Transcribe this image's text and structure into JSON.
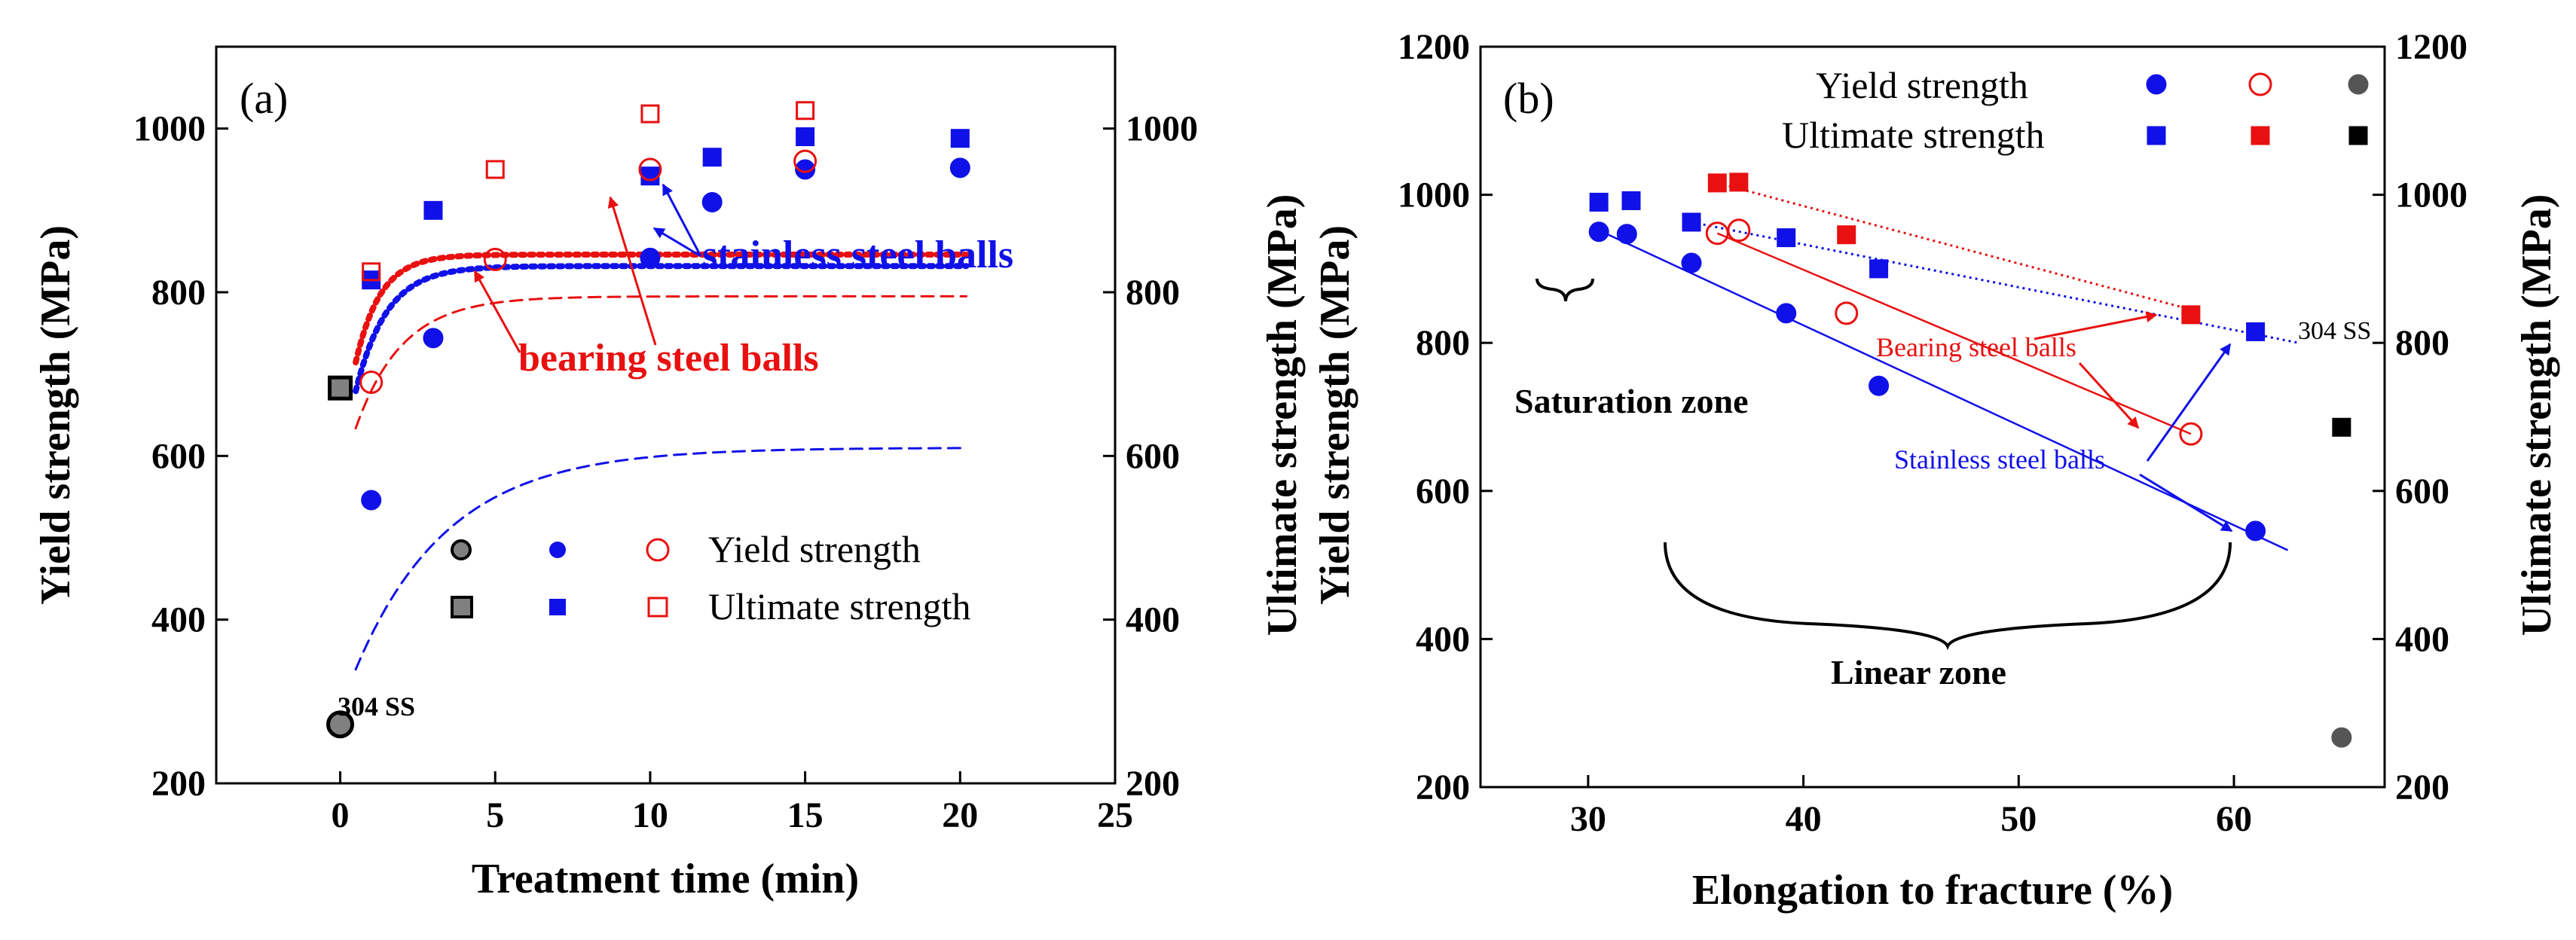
{
  "chart_data": [
    {
      "type": "scatter",
      "panel_label": "(a)",
      "xlabel": "Treatment time (min)",
      "ylabel": "Yield strength (MPa)",
      "y2label": "Ultimate strength (MPa)",
      "xlim": [
        -4,
        25
      ],
      "ylim": [
        200,
        1100
      ],
      "xticks": [
        0,
        5,
        10,
        15,
        20,
        25
      ],
      "yticks": [
        200,
        400,
        600,
        800,
        1000
      ],
      "series": [
        {
          "name": "304 SS yield",
          "marker": "circle",
          "fill": "#808080",
          "edge": "#000000",
          "points": [
            [
              0,
              272
            ]
          ]
        },
        {
          "name": "304 SS ultimate",
          "marker": "square",
          "fill": "#808080",
          "edge": "#000000",
          "points": [
            [
              0,
              683
            ]
          ]
        },
        {
          "name": "Stainless steel balls yield",
          "marker": "circle",
          "fill": "#1010e8",
          "edge": "#1010e8",
          "points": [
            [
              1,
              546
            ],
            [
              3,
              744
            ],
            [
              10,
              842
            ],
            [
              12,
              910
            ],
            [
              15,
              950
            ],
            [
              20,
              952
            ]
          ]
        },
        {
          "name": "Stainless steel balls ultimate",
          "marker": "square",
          "fill": "#1010e8",
          "edge": "#1010e8",
          "points": [
            [
              1,
              815
            ],
            [
              3,
              900
            ],
            [
              10,
              942
            ],
            [
              12,
              965
            ],
            [
              15,
              990
            ],
            [
              20,
              988
            ]
          ]
        },
        {
          "name": "Bearing steel balls yield",
          "marker": "circle",
          "fill": "none",
          "edge": "#e81010",
          "points": [
            [
              1,
              690
            ],
            [
              5,
              840
            ],
            [
              10,
              950
            ],
            [
              15,
              960
            ]
          ]
        },
        {
          "name": "Bearing steel balls ultimate",
          "marker": "square",
          "fill": "none",
          "edge": "#e81010",
          "points": [
            [
              1,
              825
            ],
            [
              5,
              950
            ],
            [
              10,
              1018
            ],
            [
              15,
              1022
            ]
          ]
        }
      ],
      "fits": [
        {
          "name": "stainless yield fit",
          "color": "#1010e8",
          "style": "dashed",
          "A": 290,
          "B": 320,
          "tau": 3
        },
        {
          "name": "stainless ultimate fit",
          "color": "#1010e8",
          "style": "dotted",
          "A": 580,
          "B": 252,
          "tau": 1
        },
        {
          "name": "bearing yield fit",
          "color": "#e81010",
          "style": "dashed",
          "A": 570,
          "B": 225,
          "tau": 1.5
        },
        {
          "name": "bearing ultimate fit",
          "color": "#e81010",
          "style": "dotted",
          "A": 600,
          "B": 246,
          "tau": 0.8
        }
      ],
      "legend_labels": [
        "Yield strength",
        "Ultimate strength"
      ],
      "annotations": {
        "ss304": "304 SS",
        "stainless": "stainless steel balls",
        "bearing": "bearing steel balls"
      }
    },
    {
      "type": "scatter",
      "panel_label": "(b)",
      "xlabel": "Elongation to fracture (%)",
      "ylabel": "Yield strength (MPa)",
      "y2label": "Ultimate strength (MPa)",
      "xlim": [
        25,
        67
      ],
      "ylim": [
        200,
        1200
      ],
      "xticks": [
        30,
        40,
        50,
        60
      ],
      "yticks": [
        200,
        400,
        600,
        800,
        1000,
        1200
      ],
      "series": [
        {
          "name": "Stainless yield",
          "marker": "circle",
          "fill": "#1010e8",
          "edge": "#1010e8",
          "points": [
            [
              30.5,
              950
            ],
            [
              31.8,
              947
            ],
            [
              34.8,
              908
            ],
            [
              39.2,
              840
            ],
            [
              43.5,
              742
            ],
            [
              61,
              546
            ]
          ]
        },
        {
          "name": "Stainless ultimate",
          "marker": "square",
          "fill": "#1010e8",
          "edge": "#1010e8",
          "points": [
            [
              30.5,
              990
            ],
            [
              32,
              992
            ],
            [
              34.8,
              963
            ],
            [
              39.2,
              942
            ],
            [
              43.5,
              900
            ],
            [
              61,
              815
            ]
          ]
        },
        {
          "name": "Bearing yield",
          "marker": "circle",
          "fill": "none",
          "edge": "#e81010",
          "points": [
            [
              36,
              948
            ],
            [
              37,
              952
            ],
            [
              42,
              840
            ],
            [
              58,
              677
            ]
          ]
        },
        {
          "name": "Bearing ultimate",
          "marker": "square",
          "fill": "#e81010",
          "edge": "#e81010",
          "points": [
            [
              36,
              1016
            ],
            [
              37,
              1017
            ],
            [
              42,
              946
            ],
            [
              58,
              838
            ]
          ]
        },
        {
          "name": "304 SS yield",
          "marker": "circle",
          "fill": "#555555",
          "edge": "#555555",
          "points": [
            [
              65,
              267
            ]
          ]
        },
        {
          "name": "304 SS ultimate",
          "marker": "square",
          "fill": "#000000",
          "edge": "#000000",
          "points": [
            [
              65,
              686
            ]
          ]
        }
      ],
      "trend_lines": [
        {
          "color": "#1010e8",
          "style": "solid",
          "from": [
            30.5,
            952
          ],
          "to": [
            62.5,
            520
          ]
        },
        {
          "color": "#1010e8",
          "style": "dotted",
          "from": [
            34.8,
            963
          ],
          "to": [
            63,
            800
          ]
        },
        {
          "color": "#e81010",
          "style": "dotted",
          "from": [
            36,
            1016
          ],
          "to": [
            58,
            845
          ]
        },
        {
          "color": "#e81010",
          "style": "solid",
          "from": [
            36,
            948
          ],
          "to": [
            58,
            677
          ]
        }
      ],
      "legend": [
        {
          "label": "Yield strength",
          "markers": [
            {
              "shape": "circle",
              "fill": "#1010e8",
              "edge": "#1010e8"
            },
            {
              "shape": "circle",
              "fill": "none",
              "edge": "#e81010"
            },
            {
              "shape": "circle",
              "fill": "#555555",
              "edge": "#555555"
            }
          ]
        },
        {
          "label": "Ultimate strength",
          "markers": [
            {
              "shape": "square",
              "fill": "#1010e8",
              "edge": "#1010e8"
            },
            {
              "shape": "square",
              "fill": "#e81010",
              "edge": "#e81010"
            },
            {
              "shape": "square",
              "fill": "#000000",
              "edge": "#000000"
            }
          ]
        }
      ],
      "annotations": {
        "saturation": "Saturation zone",
        "linear": "Linear zone",
        "bearing": "Bearing steel balls",
        "stainless": "Stainless steel balls",
        "ss304": "304 SS"
      }
    }
  ]
}
